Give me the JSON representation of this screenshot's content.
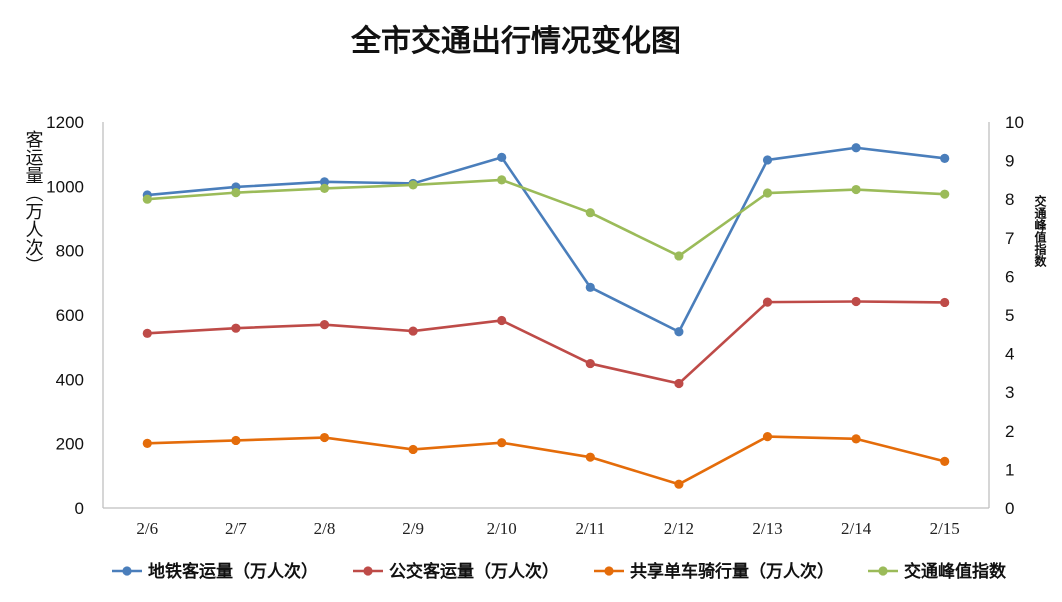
{
  "chart_data": {
    "type": "line",
    "title": "全市交通出行情况变化图",
    "categories": [
      "2/6",
      "2/7",
      "2/8",
      "2/9",
      "2/10",
      "2/11",
      "2/12",
      "2/13",
      "2/14",
      "2/15"
    ],
    "ylabel": "客运量（万人次）",
    "ylabel_right": "交通峰值指数",
    "ylim": [
      0,
      1200
    ],
    "ylim_right": [
      0,
      10
    ],
    "yticks": [
      "0",
      "200",
      "400",
      "600",
      "800",
      "1000",
      "1200"
    ],
    "yticks_right": [
      "0",
      "1",
      "2",
      "3",
      "4",
      "5",
      "6",
      "7",
      "8",
      "9",
      "10"
    ],
    "grid": false,
    "legend_position": "bottom",
    "series": [
      {
        "name": "地铁客运量（万人次）",
        "axis": "left",
        "color": "#4A7EBB",
        "values": [
          973,
          998,
          1014,
          1009,
          1090,
          686,
          548,
          1082,
          1120,
          1087
        ]
      },
      {
        "name": "公交客运量（万人次）",
        "axis": "left",
        "color": "#BE4B48",
        "values": [
          543,
          559,
          570,
          550,
          583,
          449,
          387,
          640,
          642,
          639
        ]
      },
      {
        "name": "共享单车骑行量（万人次）",
        "axis": "left",
        "color": "#E46C0A",
        "values": [
          201,
          210,
          219,
          182,
          203,
          158,
          74,
          222,
          215,
          145
        ]
      },
      {
        "name": "交通峰值指数",
        "axis": "right",
        "color": "#9BBB59",
        "values": [
          8.0,
          8.17,
          8.28,
          8.37,
          8.5,
          7.65,
          6.53,
          8.16,
          8.25,
          8.13
        ]
      }
    ]
  }
}
